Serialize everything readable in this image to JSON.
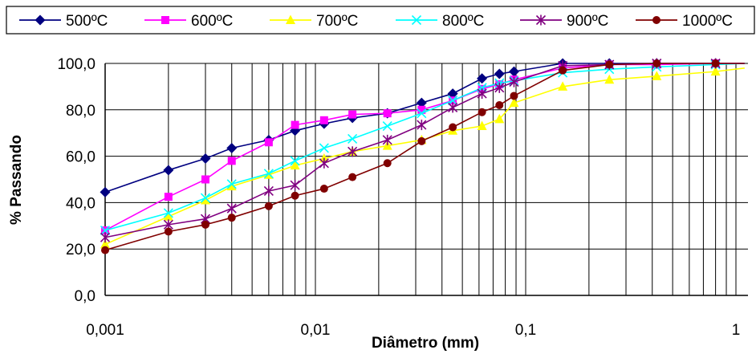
{
  "chart_data": {
    "type": "line",
    "xlabel": "Diâmetro (mm)",
    "ylabel": "% Passando",
    "xscale": "log",
    "xlim": [
      0.001,
      1.1
    ],
    "ylim": [
      0,
      100
    ],
    "x_ticks": [
      "0,001",
      "0,01",
      "0,1",
      "1"
    ],
    "y_ticks": [
      "0,0",
      "20,0",
      "40,0",
      "60,0",
      "80,0",
      "100,0"
    ],
    "grid": true,
    "legend_position": "top",
    "series": [
      {
        "name": "500ºC",
        "color": "#000080",
        "marker": "diamond",
        "points": [
          [
            0.001,
            44.5
          ],
          [
            0.002,
            54
          ],
          [
            0.003,
            59
          ],
          [
            0.004,
            63.5
          ],
          [
            0.006,
            67
          ],
          [
            0.008,
            71
          ],
          [
            0.011,
            74
          ],
          [
            0.015,
            76.5
          ],
          [
            0.022,
            78.5
          ],
          [
            0.032,
            83
          ],
          [
            0.045,
            87
          ],
          [
            0.062,
            93.5
          ],
          [
            0.075,
            95.5
          ],
          [
            0.088,
            96.5
          ],
          [
            0.15,
            100
          ],
          [
            0.25,
            100
          ],
          [
            0.42,
            100
          ],
          [
            0.8,
            100
          ],
          [
            1.1,
            100
          ]
        ]
      },
      {
        "name": "600ºC",
        "color": "#ff00ff",
        "marker": "square",
        "points": [
          [
            0.001,
            28
          ],
          [
            0.002,
            42.5
          ],
          [
            0.003,
            50
          ],
          [
            0.004,
            58
          ],
          [
            0.006,
            66
          ],
          [
            0.008,
            73.5
          ],
          [
            0.011,
            75.5
          ],
          [
            0.015,
            78
          ],
          [
            0.022,
            78.5
          ],
          [
            0.032,
            80
          ],
          [
            0.045,
            84
          ],
          [
            0.062,
            89
          ],
          [
            0.075,
            91
          ],
          [
            0.088,
            93
          ],
          [
            0.15,
            98
          ],
          [
            0.25,
            99.5
          ],
          [
            0.42,
            99.5
          ],
          [
            0.8,
            100
          ],
          [
            1.1,
            100
          ]
        ]
      },
      {
        "name": "700ºC",
        "color": "#ffff00",
        "marker": "triangle",
        "points": [
          [
            0.001,
            22
          ],
          [
            0.002,
            34
          ],
          [
            0.003,
            41
          ],
          [
            0.004,
            47
          ],
          [
            0.006,
            52
          ],
          [
            0.008,
            56
          ],
          [
            0.011,
            59
          ],
          [
            0.015,
            62
          ],
          [
            0.022,
            64.5
          ],
          [
            0.032,
            67
          ],
          [
            0.045,
            71
          ],
          [
            0.062,
            73
          ],
          [
            0.075,
            76
          ],
          [
            0.088,
            83
          ],
          [
            0.15,
            90
          ],
          [
            0.25,
            93
          ],
          [
            0.42,
            94.5
          ],
          [
            0.8,
            96.5
          ],
          [
            1.1,
            98
          ]
        ]
      },
      {
        "name": "800ºC",
        "color": "#00ffff",
        "marker": "x",
        "points": [
          [
            0.001,
            28
          ],
          [
            0.002,
            35.5
          ],
          [
            0.003,
            42
          ],
          [
            0.004,
            48
          ],
          [
            0.006,
            52.5
          ],
          [
            0.008,
            58
          ],
          [
            0.011,
            63.5
          ],
          [
            0.015,
            67.5
          ],
          [
            0.022,
            73
          ],
          [
            0.032,
            78.5
          ],
          [
            0.045,
            84
          ],
          [
            0.062,
            89.5
          ],
          [
            0.075,
            91.5
          ],
          [
            0.088,
            92.5
          ],
          [
            0.15,
            96
          ],
          [
            0.25,
            97.5
          ],
          [
            0.42,
            98.5
          ],
          [
            0.8,
            99.5
          ],
          [
            1.1,
            100
          ]
        ]
      },
      {
        "name": "900ºC",
        "color": "#800080",
        "marker": "star",
        "points": [
          [
            0.001,
            25
          ],
          [
            0.002,
            30.5
          ],
          [
            0.003,
            33
          ],
          [
            0.004,
            37.5
          ],
          [
            0.006,
            45
          ],
          [
            0.008,
            47.5
          ],
          [
            0.011,
            57
          ],
          [
            0.015,
            62
          ],
          [
            0.022,
            67
          ],
          [
            0.032,
            73.5
          ],
          [
            0.045,
            81
          ],
          [
            0.062,
            87
          ],
          [
            0.075,
            89.5
          ],
          [
            0.088,
            92
          ],
          [
            0.15,
            99
          ],
          [
            0.25,
            99.5
          ],
          [
            0.42,
            100
          ],
          [
            0.8,
            100
          ],
          [
            1.1,
            100
          ]
        ]
      },
      {
        "name": "1000ºC",
        "color": "#800000",
        "marker": "circle",
        "points": [
          [
            0.001,
            19.5
          ],
          [
            0.002,
            27.5
          ],
          [
            0.003,
            30.5
          ],
          [
            0.004,
            33.5
          ],
          [
            0.006,
            38.5
          ],
          [
            0.008,
            43
          ],
          [
            0.011,
            46
          ],
          [
            0.015,
            51
          ],
          [
            0.022,
            57
          ],
          [
            0.032,
            66.5
          ],
          [
            0.045,
            72.5
          ],
          [
            0.062,
            79
          ],
          [
            0.075,
            82
          ],
          [
            0.088,
            86
          ],
          [
            0.15,
            97
          ],
          [
            0.25,
            99.5
          ],
          [
            0.42,
            100
          ],
          [
            0.8,
            100
          ],
          [
            1.1,
            100
          ]
        ]
      }
    ]
  }
}
